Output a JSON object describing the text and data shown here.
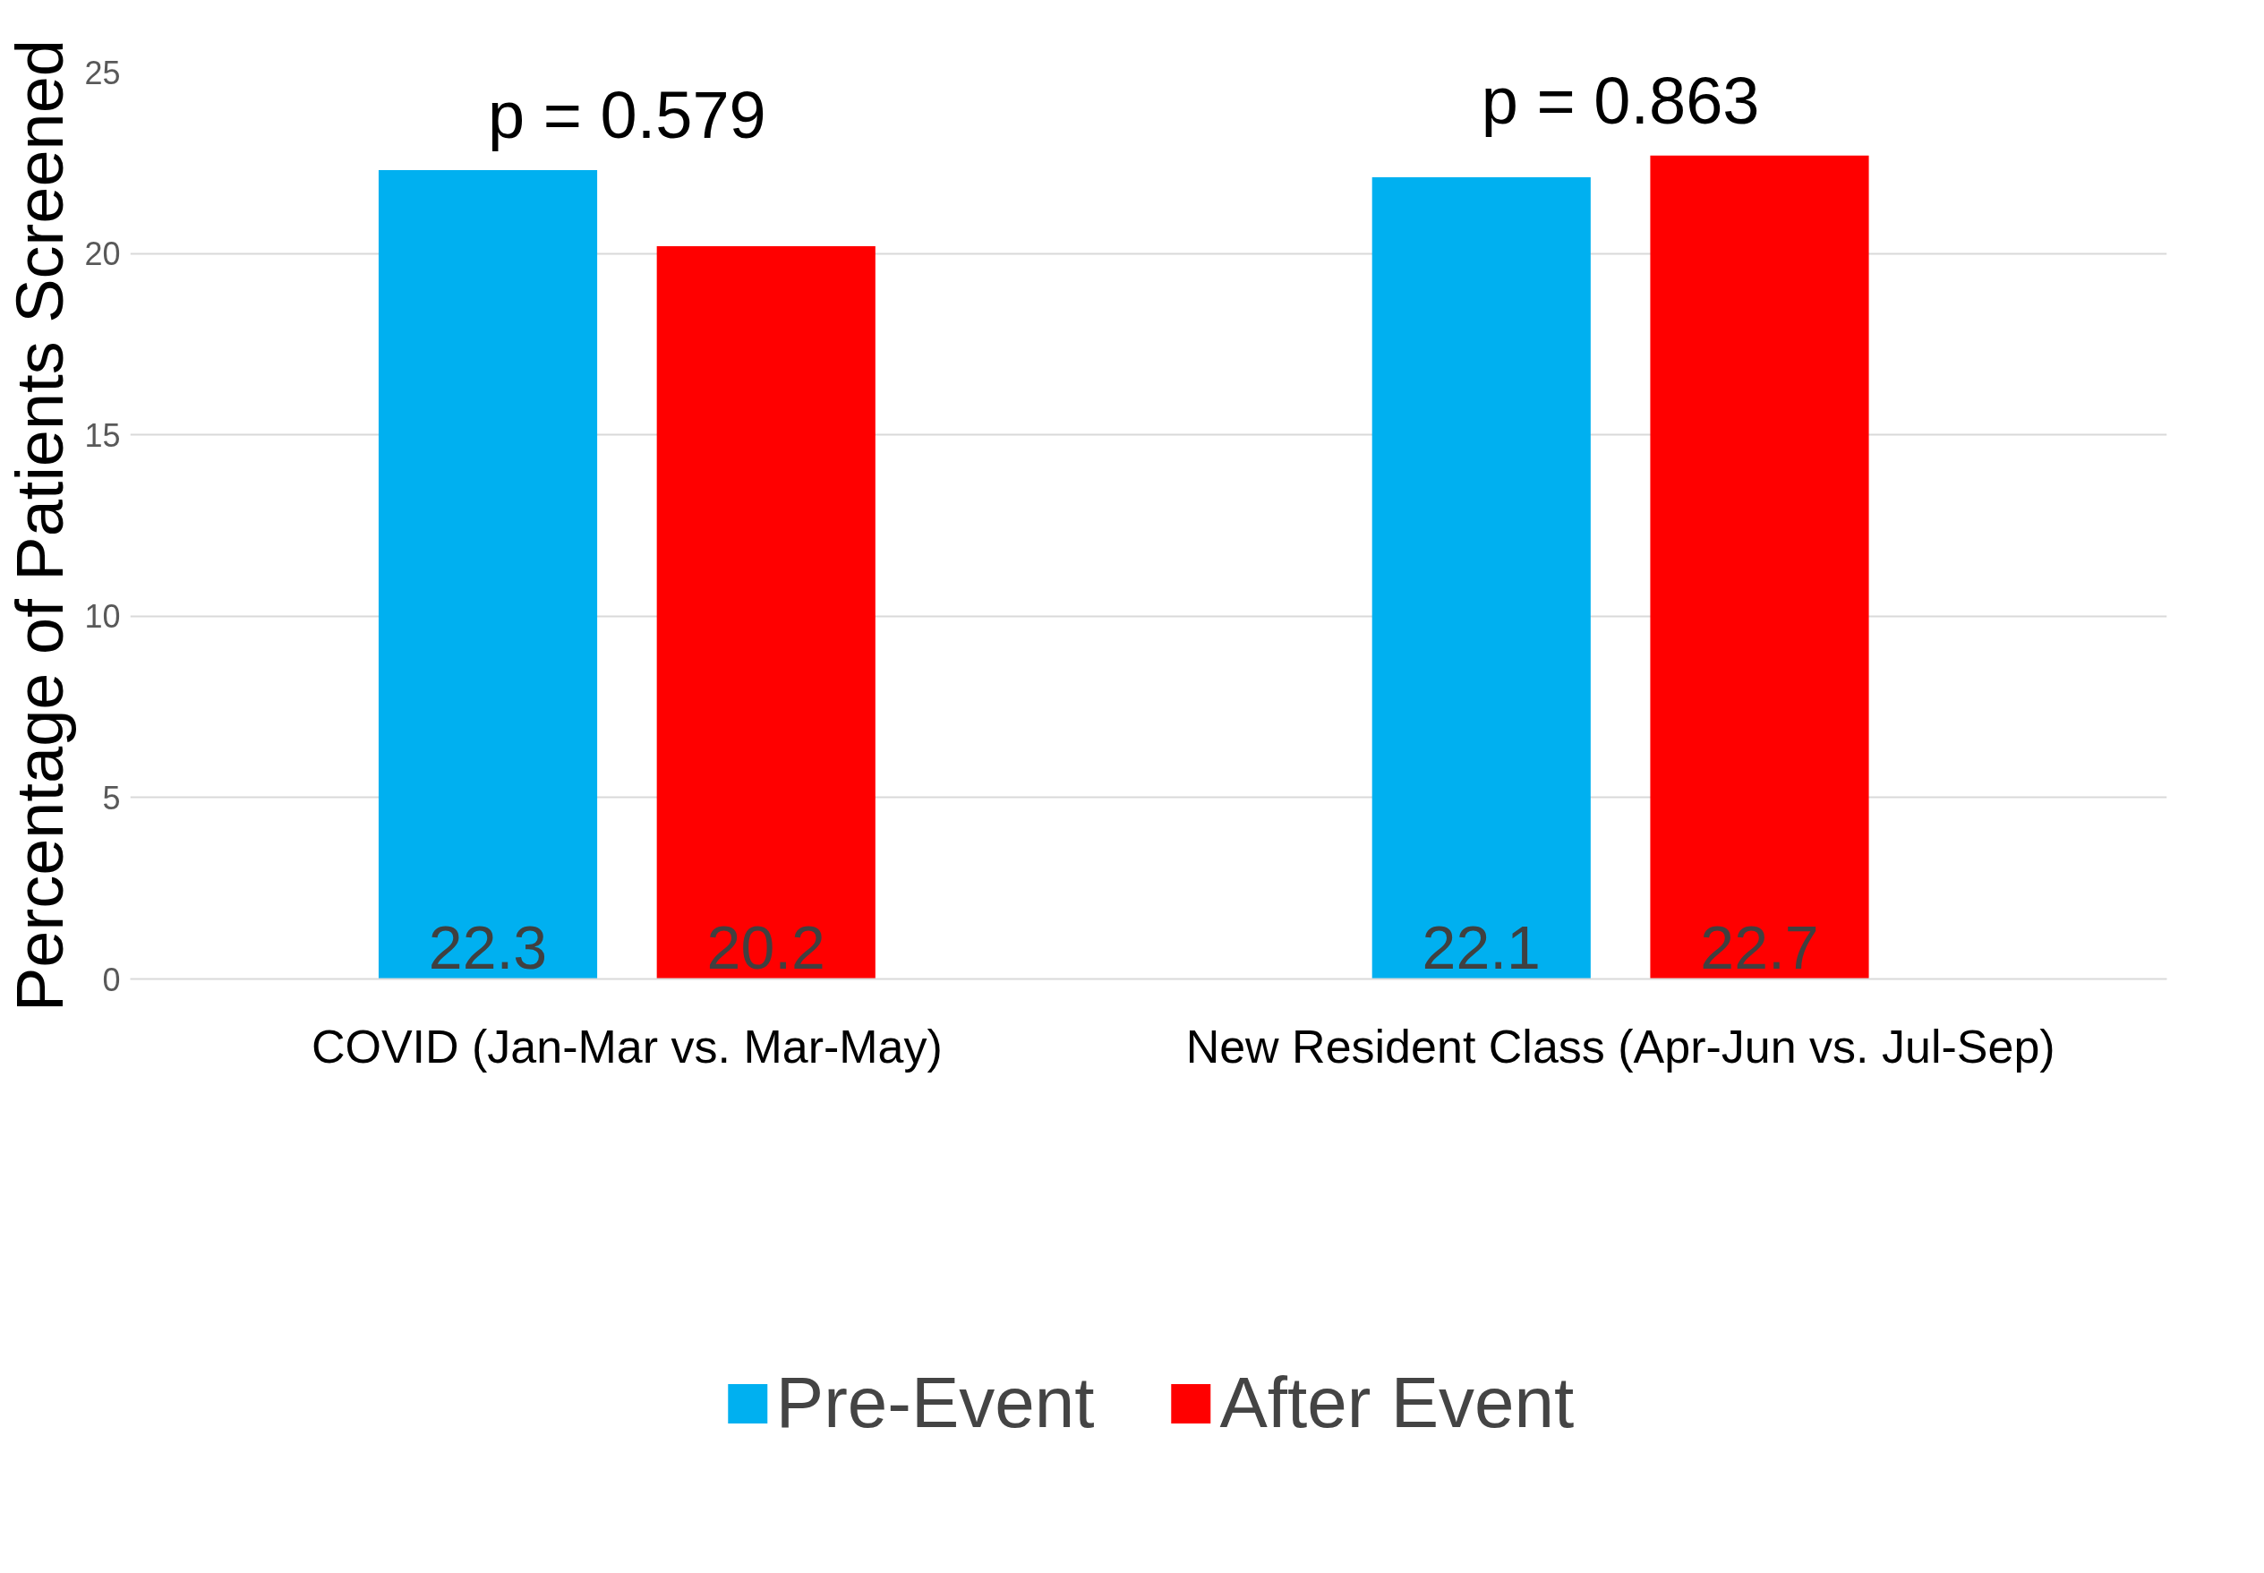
{
  "chart_data": {
    "type": "bar",
    "ylabel": "Percentage of Patients Screened",
    "categories": [
      "COVID (Jan-Mar vs. Mar-May)",
      "New Resident Class (Apr-Jun vs. Jul-Sep)"
    ],
    "series": [
      {
        "name": "Pre-Event",
        "color": "#00b0f0",
        "values": [
          22.3,
          22.1
        ]
      },
      {
        "name": "After Event",
        "color": "#ff0000",
        "values": [
          20.2,
          22.7
        ]
      }
    ],
    "ylim": [
      0,
      25
    ],
    "yticks": [
      0,
      5,
      10,
      15,
      20,
      25
    ],
    "grid": "y",
    "legend": "bottom",
    "data_labels": true,
    "annotations": [
      "p = 0.579",
      "p = 0.863"
    ]
  }
}
